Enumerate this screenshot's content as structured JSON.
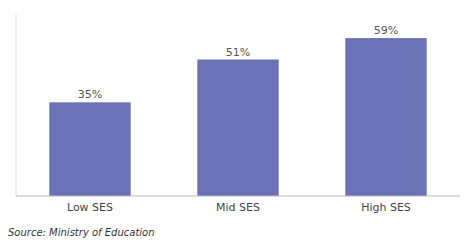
{
  "chart_data": {
    "type": "bar",
    "categories": [
      "Low SES",
      "Mid SES",
      "High SES"
    ],
    "values": [
      35,
      51,
      59
    ],
    "value_labels": [
      "35%",
      "51%",
      "59%"
    ],
    "color": "#6b72b5",
    "ylim": [
      0,
      68
    ],
    "yticks": [],
    "grid": false,
    "data_labels": true,
    "tick_labels": "x",
    "annotations": [
      "Source: Ministry of Education"
    ]
  }
}
